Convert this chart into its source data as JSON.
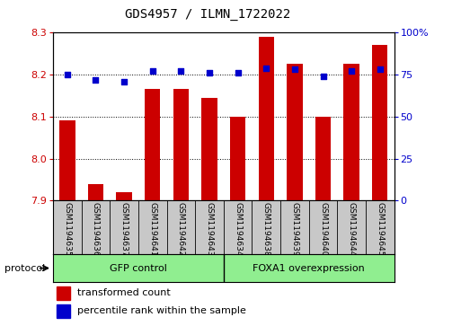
{
  "title": "GDS4957 / ILMN_1722022",
  "samples": [
    "GSM1194635",
    "GSM1194636",
    "GSM1194637",
    "GSM1194641",
    "GSM1194642",
    "GSM1194643",
    "GSM1194634",
    "GSM1194638",
    "GSM1194639",
    "GSM1194640",
    "GSM1194644",
    "GSM1194645"
  ],
  "transformed_counts": [
    8.09,
    7.94,
    7.92,
    8.165,
    8.165,
    8.145,
    8.1,
    8.29,
    8.225,
    8.1,
    8.225,
    8.27
  ],
  "percentile_ranks": [
    75,
    72,
    71,
    77,
    77,
    76,
    76,
    79,
    78,
    74,
    77,
    78
  ],
  "bar_color": "#CC0000",
  "dot_color": "#0000CC",
  "ylim_left": [
    7.9,
    8.3
  ],
  "ylim_right": [
    0,
    100
  ],
  "yticks_left": [
    7.9,
    8.0,
    8.1,
    8.2,
    8.3
  ],
  "yticks_right": [
    0,
    25,
    50,
    75,
    100
  ],
  "ytick_labels_right": [
    "0",
    "25",
    "50",
    "75",
    "100%"
  ],
  "grid_values": [
    8.0,
    8.1,
    8.2
  ],
  "background_color": "#ffffff",
  "bar_width": 0.55,
  "legend_items": [
    "transformed count",
    "percentile rank within the sample"
  ],
  "protocol_label": "protocol",
  "group1_label": "GFP control",
  "group2_label": "FOXA1 overexpression",
  "group_split": 6,
  "sample_box_color": "#C8C8C8",
  "group_box_color": "#90EE90"
}
